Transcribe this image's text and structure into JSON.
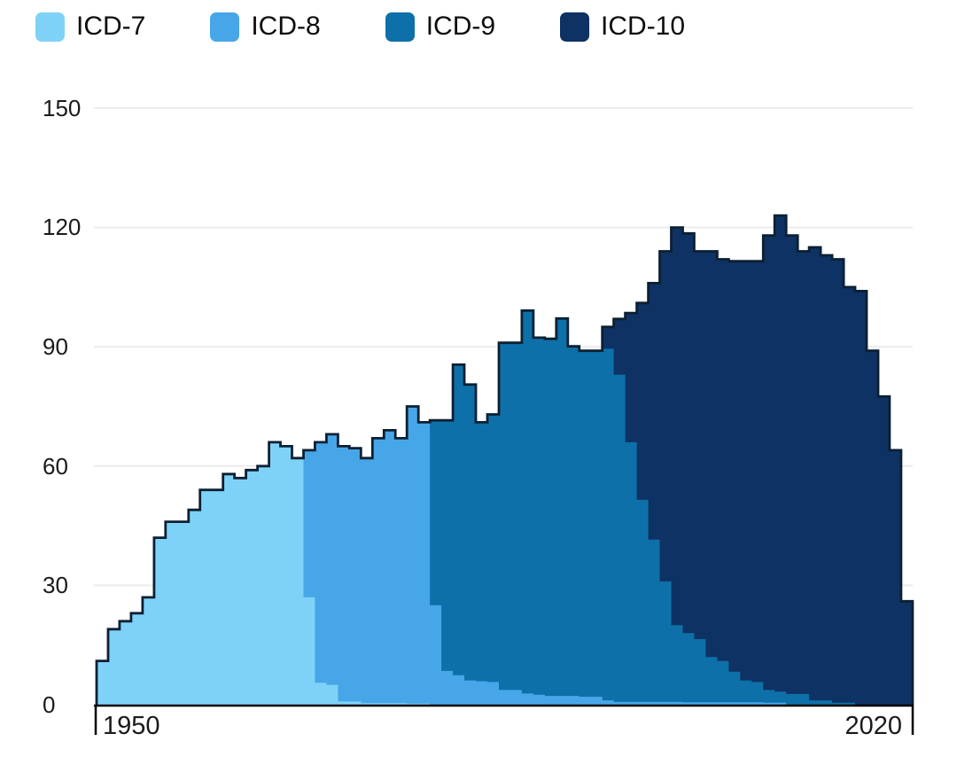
{
  "axes": {
    "y_ticks": [
      "150",
      "120",
      "90",
      "60",
      "30",
      "0"
    ],
    "y_tick_values": [
      150,
      120,
      90,
      60,
      30,
      0
    ],
    "x_ticks": [
      "1950",
      "2020"
    ]
  },
  "colors": {
    "background": "#ffffff",
    "gridline": "#ececec",
    "axis": "#000000",
    "text": "#1a1a1a",
    "outline": "#0c2033"
  },
  "chart_data": {
    "type": "area",
    "subtype": "stacked-step-area",
    "title": "",
    "xlabel": "",
    "ylabel": "",
    "x_start": 1950,
    "x_end": 2020,
    "x_step_years": 1,
    "ylim": [
      0,
      150
    ],
    "y_tick_interval": 30,
    "grid": "horizontal",
    "legend_position": "top-left",
    "outline_color": "#0c2033",
    "stack_order_bottom_to_top": [
      "ICD-7",
      "ICD-8",
      "ICD-9",
      "ICD-10"
    ],
    "series": [
      {
        "name": "ICD-7",
        "color": "#7fd2f7",
        "values": [
          11,
          19,
          21,
          23,
          27,
          42,
          46,
          46,
          49,
          54,
          54,
          58,
          57,
          59,
          60,
          66,
          65,
          62,
          27,
          5.5,
          5,
          0.8,
          0.8,
          0.4,
          0.4,
          0.4,
          0.4,
          0.3,
          0.3,
          0,
          0,
          0,
          0,
          0,
          0,
          0,
          0,
          0,
          0,
          0,
          0,
          0,
          0,
          0,
          0,
          0,
          0,
          0,
          0,
          0,
          0,
          0,
          0,
          0,
          0,
          0,
          0,
          0,
          0,
          0,
          0,
          0,
          0,
          0,
          0,
          0,
          0,
          0,
          0,
          0,
          0
        ]
      },
      {
        "name": "ICD-8",
        "color": "#47a6e8",
        "values": [
          0,
          0,
          0,
          0,
          0,
          0,
          0,
          0,
          0,
          0,
          0,
          0,
          0,
          0,
          0,
          0,
          0,
          0,
          37,
          60.5,
          63,
          64.2,
          63.7,
          61.6,
          66.6,
          68.6,
          66.6,
          74.7,
          70.7,
          25,
          8.5,
          7.4,
          6.1,
          5.9,
          5.7,
          3.7,
          3.7,
          2.8,
          2.5,
          2.2,
          2.2,
          2.2,
          2,
          2,
          1.1,
          0.7,
          0.7,
          0.7,
          0.7,
          0.7,
          0.7,
          0.6,
          0.6,
          0.6,
          0.6,
          0.6,
          0.6,
          0.6,
          0.5,
          0.5,
          0,
          0,
          0,
          0,
          0,
          0,
          0,
          0,
          0,
          0,
          0
        ]
      },
      {
        "name": "ICD-9",
        "color": "#0e70a8",
        "values": [
          0,
          0,
          0,
          0,
          0,
          0,
          0,
          0,
          0,
          0,
          0,
          0,
          0,
          0,
          0,
          0,
          0,
          0,
          0,
          0,
          0,
          0,
          0,
          0,
          0,
          0,
          0,
          0,
          0,
          46.5,
          63,
          78.1,
          74.4,
          65.1,
          67.3,
          87.3,
          87.3,
          96.3,
          89.8,
          89.8,
          94.9,
          87.9,
          87,
          87,
          88.4,
          82.3,
          65.3,
          50.8,
          40.8,
          30.3,
          19.3,
          17.4,
          15.9,
          11.4,
          10.4,
          7.7,
          5.5,
          5.1,
          3.2,
          2.8,
          2.7,
          2.7,
          1.1,
          1.1,
          0.5,
          0.5,
          0,
          0,
          0,
          0,
          0
        ]
      },
      {
        "name": "ICD-10",
        "color": "#0e3263",
        "values": [
          0,
          0,
          0,
          0,
          0,
          0,
          0,
          0,
          0,
          0,
          0,
          0,
          0,
          0,
          0,
          0,
          0,
          0,
          0,
          0,
          0,
          0,
          0,
          0,
          0,
          0,
          0,
          0,
          0,
          0,
          0,
          0,
          0,
          0,
          0,
          0,
          0,
          0,
          0,
          0,
          0,
          0,
          0,
          0,
          5.5,
          14,
          32.5,
          49.5,
          64.5,
          83,
          100,
          100.5,
          97.5,
          102,
          101,
          103.2,
          105.4,
          105.8,
          114.3,
          119.7,
          115.3,
          111.3,
          113.9,
          111.9,
          111.5,
          104.5,
          104,
          89,
          77.5,
          64,
          26
        ]
      }
    ]
  }
}
